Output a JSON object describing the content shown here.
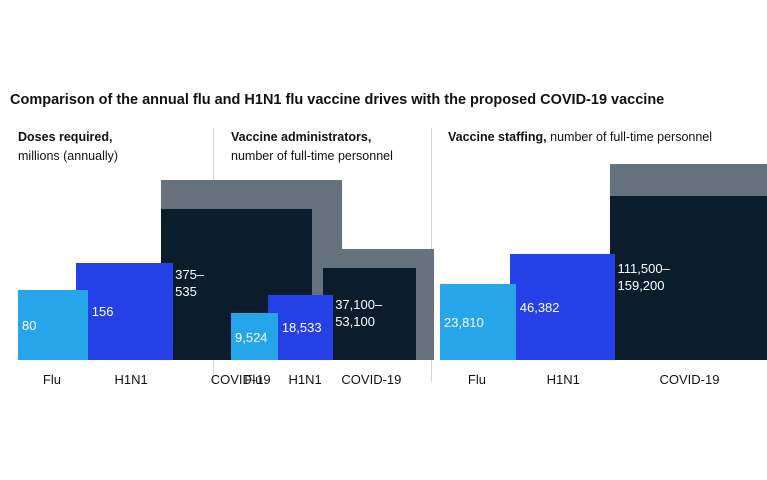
{
  "title": "Comparison of the annual flu and H1N1 flu vaccine drives with the proposed COVID-19 vaccine",
  "colors": {
    "flu": "#27a5ea",
    "h1n1": "#2440e6",
    "covid_low": "#0b1c2c",
    "covid_high": "#66737f"
  },
  "chart_data": [
    {
      "type": "bar",
      "title_bold": "Doses required,",
      "title_rest": "millions (annually)",
      "categories": [
        "Flu",
        "H1N1",
        "COVID-19"
      ],
      "values": [
        80,
        156,
        [
          375,
          535
        ]
      ],
      "value_labels": [
        "80",
        "156",
        "375–\n535"
      ]
    },
    {
      "type": "bar",
      "title_bold": "Vaccine administrators,",
      "title_rest": "number of full-time personnel",
      "categories": [
        "Flu",
        "H1N1",
        "COVID-19"
      ],
      "values": [
        9524,
        18533,
        [
          37100,
          53100
        ]
      ],
      "value_labels": [
        "9,524",
        "18,533",
        "37,100–\n53,100"
      ]
    },
    {
      "type": "bar",
      "title_bold": "Vaccine staffing,",
      "title_rest": "number of full-time personnel",
      "categories": [
        "Flu",
        "H1N1",
        "COVID-19"
      ],
      "values": [
        23810,
        46382,
        [
          111500,
          159200
        ]
      ],
      "value_labels": [
        "23,810",
        "46,382",
        "111,500–\n159,200"
      ]
    }
  ]
}
